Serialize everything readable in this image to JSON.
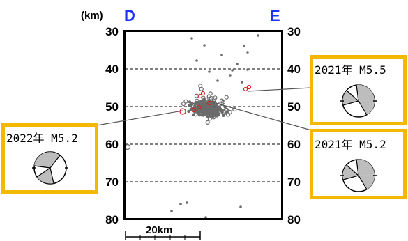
{
  "unit_label": "(km)",
  "left_dir": "D",
  "right_dir": "E",
  "scale_label": "20km",
  "depth_ticks": [
    "30",
    "40",
    "50",
    "60",
    "70",
    "80"
  ],
  "colors": {
    "frame": "#000000",
    "direction_text": "#1a33ff",
    "highlight_box": "#f5b800",
    "event_gray": "#6b6b6b",
    "event_red": "#e02020"
  },
  "mechanism_boxes": [
    {
      "id": "left",
      "title": "2022年 M5.2"
    },
    {
      "id": "right-top",
      "title": "2021年 M5.5"
    },
    {
      "id": "right-bottom",
      "title": "2021年 M5.2"
    }
  ]
}
